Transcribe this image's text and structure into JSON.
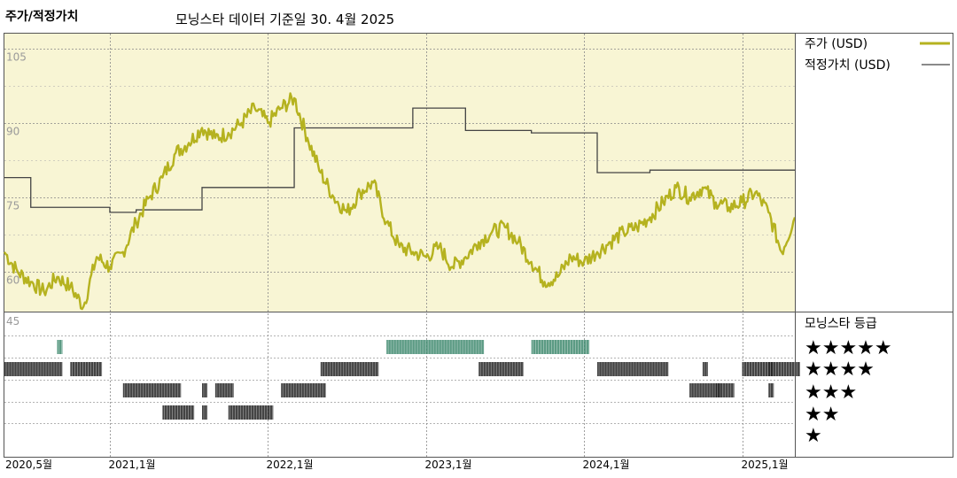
{
  "header": {
    "title": "주가/적정가치",
    "subtitle": "모닝스타 데이터 기준일 30. 4월 2025"
  },
  "legend": {
    "price_label": "주가 (USD)",
    "fair_label": "적정가치 (USD)",
    "rating_title": "모닝스타 등급",
    "star_rows": [
      "★★★★★",
      "★★★★",
      "★★★",
      "★★",
      "★"
    ]
  },
  "colors": {
    "price": "#b5b21f",
    "fair": "#444444",
    "upper_bg": "#f8f5d4",
    "five_star": "#3f8a6e",
    "other_star": "#222222",
    "grid": "#888888"
  },
  "chart_data": [
    {
      "type": "line",
      "title": "",
      "ylim": [
        52,
        108
      ],
      "y_ticks": [
        "105",
        "90",
        "75",
        "60"
      ],
      "y_tick_values": [
        105,
        90,
        75,
        60
      ],
      "grid": true,
      "x_tick_labels": [
        "2020,5월",
        "2021,1월",
        "2022,1월",
        "2023,1월",
        "2024,1월",
        "2025,1월"
      ],
      "x_tick_dates": [
        "2020-05",
        "2021-01",
        "2022-01",
        "2023-01",
        "2024-01",
        "2025-01"
      ],
      "x_range": [
        "2020-05",
        "2025-05"
      ],
      "series": [
        {
          "name": "주가 (USD)",
          "points": [
            [
              "2020-05",
              64
            ],
            [
              "2020-06",
              60
            ],
            [
              "2020-07",
              58
            ],
            [
              "2020-08",
              56
            ],
            [
              "2020-09",
              59
            ],
            [
              "2020-10",
              57
            ],
            [
              "2020-11",
              53
            ],
            [
              "2020-12",
              63
            ],
            [
              "2021-01",
              61
            ],
            [
              "2021-02",
              64
            ],
            [
              "2021-03",
              70
            ],
            [
              "2021-04",
              75
            ],
            [
              "2021-05",
              79
            ],
            [
              "2021-06",
              84
            ],
            [
              "2021-07",
              86
            ],
            [
              "2021-08",
              89
            ],
            [
              "2021-09",
              87
            ],
            [
              "2021-10",
              88
            ],
            [
              "2021-11",
              90
            ],
            [
              "2021-12",
              93
            ],
            [
              "2022-01",
              90
            ],
            [
              "2022-02",
              93
            ],
            [
              "2022-03",
              95
            ],
            [
              "2022-04",
              87
            ],
            [
              "2022-05",
              80
            ],
            [
              "2022-06",
              75
            ],
            [
              "2022-07",
              72
            ],
            [
              "2022-08",
              76
            ],
            [
              "2022-09",
              78
            ],
            [
              "2022-10",
              70
            ],
            [
              "2022-11",
              65
            ],
            [
              "2022-12",
              64
            ],
            [
              "2023-01",
              63
            ],
            [
              "2023-02",
              65
            ],
            [
              "2023-03",
              61
            ],
            [
              "2023-04",
              63
            ],
            [
              "2023-05",
              66
            ],
            [
              "2023-06",
              68
            ],
            [
              "2023-07",
              69
            ],
            [
              "2023-08",
              66
            ],
            [
              "2023-09",
              62
            ],
            [
              "2023-10",
              58
            ],
            [
              "2023-11",
              59
            ],
            [
              "2023-12",
              63
            ],
            [
              "2024-01",
              62
            ],
            [
              "2024-02",
              64
            ],
            [
              "2024-03",
              66
            ],
            [
              "2024-04",
              68
            ],
            [
              "2024-05",
              69
            ],
            [
              "2024-06",
              71
            ],
            [
              "2024-07",
              74
            ],
            [
              "2024-08",
              77
            ],
            [
              "2024-09",
              75
            ],
            [
              "2024-10",
              77
            ],
            [
              "2024-11",
              74
            ],
            [
              "2024-12",
              73
            ],
            [
              "2025-01",
              74
            ],
            [
              "2025-02",
              76
            ],
            [
              "2025-03",
              72
            ],
            [
              "2025-04",
              64
            ],
            [
              "2025-05",
              71
            ]
          ]
        },
        {
          "name": "적정가치 (USD)",
          "step": true,
          "points": [
            [
              "2020-05",
              79
            ],
            [
              "2020-07",
              73
            ],
            [
              "2020-10",
              73
            ],
            [
              "2021-01",
              72
            ],
            [
              "2021-03",
              72.5
            ],
            [
              "2021-06",
              72.5
            ],
            [
              "2021-08",
              77
            ],
            [
              "2021-12",
              77
            ],
            [
              "2022-03",
              89
            ],
            [
              "2022-11",
              89
            ],
            [
              "2022-12",
              93
            ],
            [
              "2023-04",
              88.5
            ],
            [
              "2023-09",
              88
            ],
            [
              "2023-10",
              88
            ],
            [
              "2024-01",
              88
            ],
            [
              "2024-02",
              80
            ],
            [
              "2024-06",
              80.5
            ],
            [
              "2025-05",
              80.5
            ]
          ]
        }
      ]
    },
    {
      "type": "heatmap",
      "title": "",
      "y_categories": [
        "★★★★★",
        "★★★★",
        "★★★",
        "★★"
      ],
      "segments": [
        {
          "rating": 5,
          "start": "2020-09",
          "end": "2020-09"
        },
        {
          "rating": 5,
          "start": "2022-10",
          "end": "2023-05"
        },
        {
          "rating": 5,
          "start": "2023-09",
          "end": "2024-01"
        },
        {
          "rating": 4,
          "start": "2020-05",
          "end": "2020-09"
        },
        {
          "rating": 4,
          "start": "2020-10",
          "end": "2020-12"
        },
        {
          "rating": 4,
          "start": "2022-05",
          "end": "2022-09"
        },
        {
          "rating": 4,
          "start": "2023-05",
          "end": "2023-08"
        },
        {
          "rating": 4,
          "start": "2024-02",
          "end": "2024-07"
        },
        {
          "rating": 4,
          "start": "2024-10",
          "end": "2024-10"
        },
        {
          "rating": 4,
          "start": "2025-01",
          "end": "2025-03"
        },
        {
          "rating": 4,
          "start": "2025-03",
          "end": "2025-05"
        },
        {
          "rating": 3,
          "start": "2021-02",
          "end": "2021-06"
        },
        {
          "rating": 3,
          "start": "2021-08",
          "end": "2021-08"
        },
        {
          "rating": 3,
          "start": "2021-09",
          "end": "2021-10"
        },
        {
          "rating": 3,
          "start": "2022-02",
          "end": "2022-05"
        },
        {
          "rating": 3,
          "start": "2024-09",
          "end": "2024-11"
        },
        {
          "rating": 3,
          "start": "2024-11",
          "end": "2024-12"
        },
        {
          "rating": 3,
          "start": "2025-03",
          "end": "2025-03"
        },
        {
          "rating": 2,
          "start": "2021-05",
          "end": "2021-07"
        },
        {
          "rating": 2,
          "start": "2021-08",
          "end": "2021-08"
        },
        {
          "rating": 2,
          "start": "2021-10",
          "end": "2022-01"
        }
      ]
    }
  ]
}
